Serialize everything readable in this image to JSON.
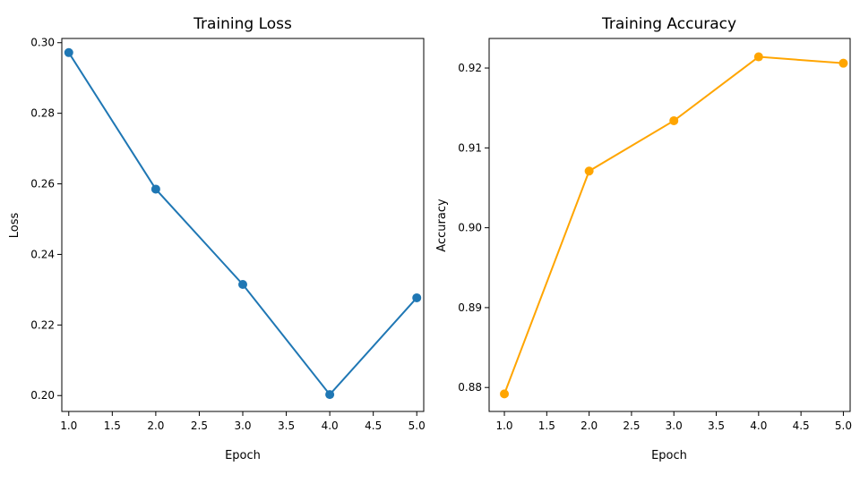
{
  "chart_data": [
    {
      "type": "line",
      "title": "Training Loss",
      "xlabel": "Epoch",
      "ylabel": "Loss",
      "x": [
        1,
        2,
        3,
        4,
        5
      ],
      "series": [
        {
          "values": [
            0.2972,
            0.2585,
            0.2315,
            0.2003,
            0.2277
          ],
          "color": "#1f77b4"
        }
      ],
      "xlim": [
        0.92,
        5.08
      ],
      "ylim": [
        0.1955,
        0.3012
      ],
      "xticks": [
        1.0,
        1.5,
        2.0,
        2.5,
        3.0,
        3.5,
        4.0,
        4.5,
        5.0
      ],
      "xtick_labels": [
        "1.0",
        "1.5",
        "2.0",
        "2.5",
        "3.0",
        "3.5",
        "4.0",
        "4.5",
        "5.0"
      ],
      "yticks": [
        0.2,
        0.22,
        0.24,
        0.26,
        0.28,
        0.3
      ],
      "ytick_labels": [
        "0.20",
        "0.22",
        "0.24",
        "0.26",
        "0.28",
        "0.30"
      ],
      "grid": false,
      "marker": "circle"
    },
    {
      "type": "line",
      "title": "Training Accuracy",
      "xlabel": "Epoch",
      "ylabel": "Accuracy",
      "x": [
        1,
        2,
        3,
        4,
        5
      ],
      "series": [
        {
          "values": [
            0.8792,
            0.9071,
            0.9134,
            0.9214,
            0.9206
          ],
          "color": "#ffa500"
        }
      ],
      "xlim": [
        0.82,
        5.08
      ],
      "ylim": [
        0.877,
        0.9237
      ],
      "xticks": [
        1.0,
        1.5,
        2.0,
        2.5,
        3.0,
        3.5,
        4.0,
        4.5,
        5.0
      ],
      "xtick_labels": [
        "1.0",
        "1.5",
        "2.0",
        "2.5",
        "3.0",
        "3.5",
        "4.0",
        "4.5",
        "5.0"
      ],
      "yticks": [
        0.88,
        0.89,
        0.9,
        0.91,
        0.92
      ],
      "ytick_labels": [
        "0.88",
        "0.89",
        "0.90",
        "0.91",
        "0.92"
      ],
      "grid": false,
      "marker": "circle"
    }
  ]
}
